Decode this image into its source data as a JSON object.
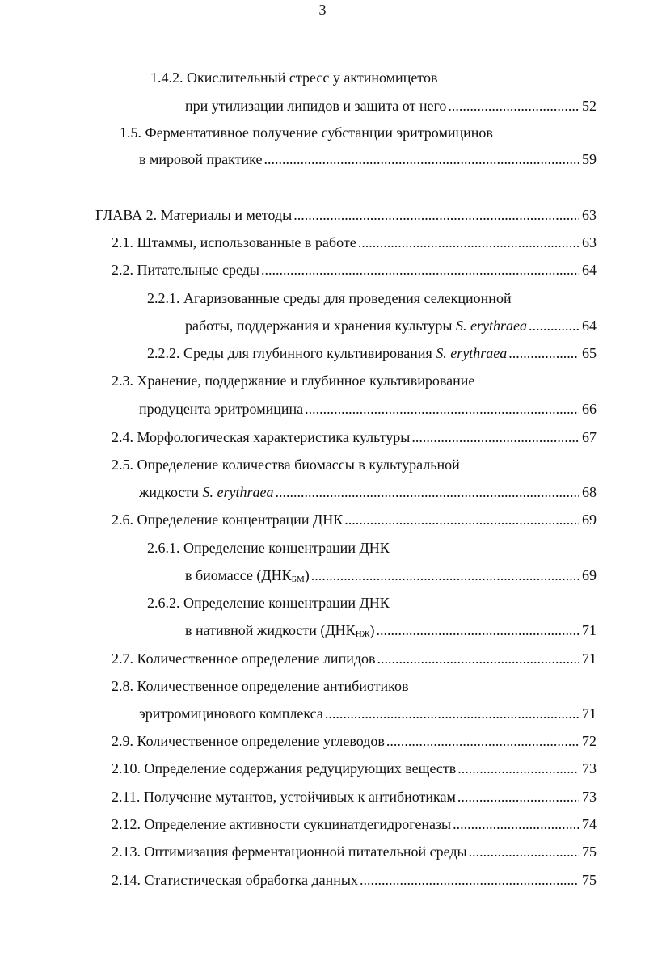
{
  "page_number": "3",
  "toc": [
    {
      "a": "1.4.2. Окислительный стресс у актиномицетов"
    },
    {
      "a": "при утилизации липидов и защита от него",
      "page": "52"
    },
    {
      "a": "1.5. Ферментативное получение субстанции эритромицинов"
    },
    {
      "a": "в мировой практике",
      "page": "59"
    },
    {
      "a": "ГЛАВА 2. Материалы и методы",
      "page": "63"
    },
    {
      "a": "2.1. Штаммы, использованные в работе",
      "page": "63"
    },
    {
      "a": "2.2. Питательные среды",
      "page": "64"
    },
    {
      "a": "2.2.1. Агаризованные среды для проведения селекционной"
    },
    {
      "a": "работы, поддержания и хранения культуры ",
      "i": "S. erythraea",
      "page": "64"
    },
    {
      "a": "2.2.2. Среды для глубинного культивирования ",
      "i": "S. erythraea",
      "page": "65"
    },
    {
      "a": "2.3. Хранение, поддержание и глубинное культивирование"
    },
    {
      "a": "продуцента эритромицина",
      "page": "66"
    },
    {
      "a": "2.4. Морфологическая характеристика культуры",
      "page": "67"
    },
    {
      "a": "2.5. Определение количества биомассы в культуральной"
    },
    {
      "a": "жидкости  ",
      "i": "S. erythraea",
      "page": "68"
    },
    {
      "a": "2.6. Определение концентрации ДНК",
      "page": "69"
    },
    {
      "a": "2.6.1.  Определение концентрации ДНК"
    },
    {
      "a": "в биомассе (ДНК",
      "s": "БМ",
      "c": ")",
      "page": "69"
    },
    {
      "a": "2.6.2. Определение концентрации ДНК"
    },
    {
      "a": "в нативной жидкости  (ДНК",
      "s": "НЖ",
      "c": ")",
      "page": "71"
    },
    {
      "a": "2.7. Количественное определение липидов",
      "page": "71"
    },
    {
      "a": "2.8. Количественное определение антибиотиков"
    },
    {
      "a": "эритромицинового комплекса",
      "page": "71"
    },
    {
      "a": "2.9. Количественное определение углеводов",
      "page": "72"
    },
    {
      "a": "2.10. Определение содержания редуцирующих веществ",
      "page": "73"
    },
    {
      "a": "2.11. Получение мутантов, устойчивых к антибиотикам",
      "page": "73"
    },
    {
      "a": "2.12. Определение активности сукцинатдегидрогеназы",
      "page": "74"
    },
    {
      "a": "2.13. Оптимизация ферментационной питательной среды",
      "page": "75"
    },
    {
      "a": "2.14. Статистическая обработка данных",
      "page": "75"
    }
  ]
}
